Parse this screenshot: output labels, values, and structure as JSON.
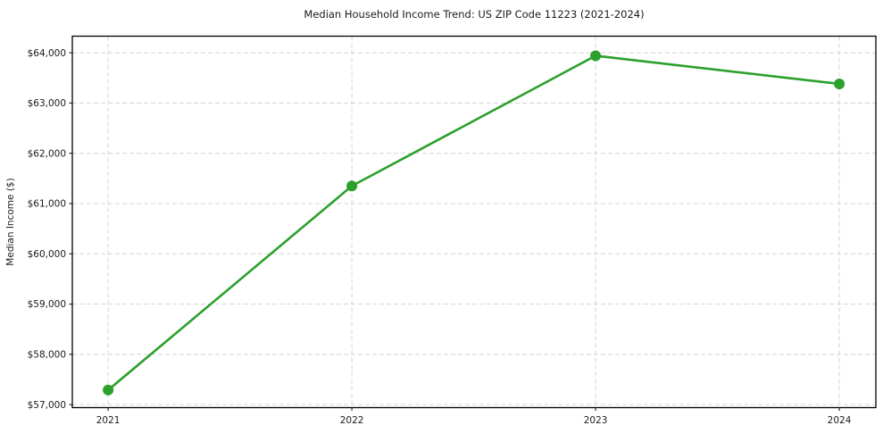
{
  "chart_data": {
    "type": "line",
    "title": "Median Household Income Trend: US ZIP Code 11223 (2021-2024)",
    "xlabel": "",
    "ylabel": "Median Income ($)",
    "x": [
      2021,
      2022,
      2023,
      2024
    ],
    "x_tick_labels": [
      "2021",
      "2022",
      "2023",
      "2024"
    ],
    "values": [
      57290,
      61350,
      63940,
      63380
    ],
    "y_ticks": [
      57000,
      58000,
      59000,
      60000,
      61000,
      62000,
      63000,
      64000
    ],
    "y_tick_labels": [
      "$57,000",
      "$58,000",
      "$59,000",
      "$60,000",
      "$61,000",
      "$62,000",
      "$63,000",
      "$64,000"
    ],
    "xlim": [
      2020.853,
      2024.15
    ],
    "ylim": [
      56940,
      64330
    ],
    "grid": true,
    "grid_style": "dashed",
    "legend": "none",
    "colors": {
      "line": "#2ca02c",
      "marker": "#2ca02c",
      "grid": "#d4d4d4",
      "spine": "#000000",
      "text": "#1a1a1a",
      "background": "#ffffff"
    }
  }
}
